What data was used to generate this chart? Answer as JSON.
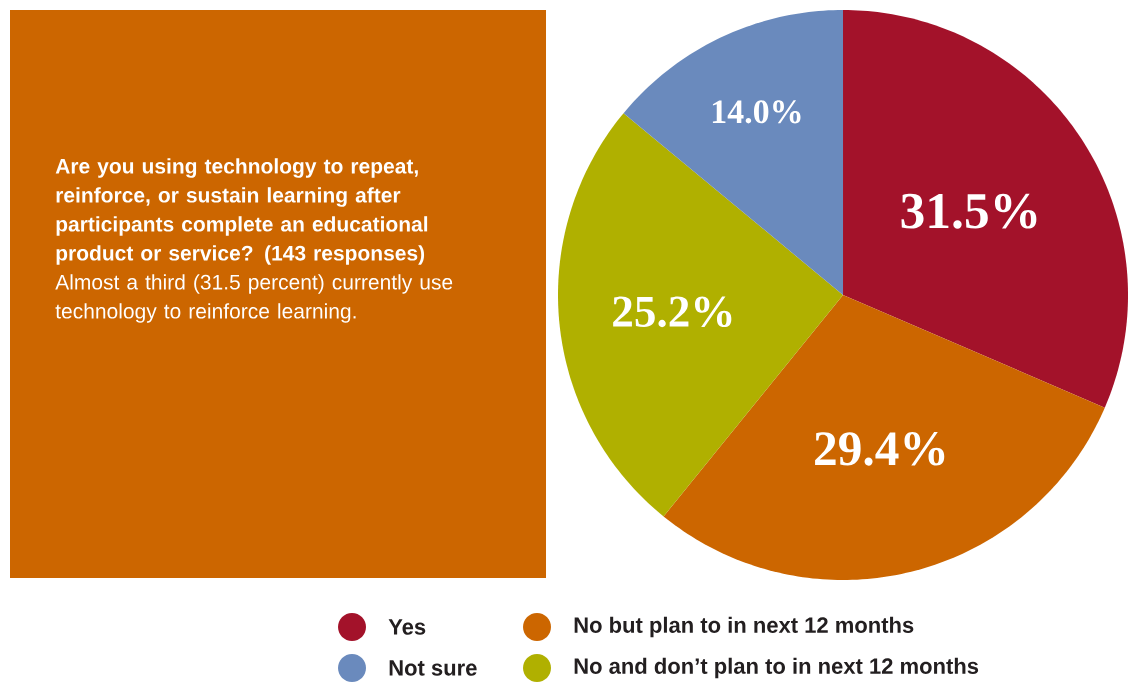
{
  "chart_data": {
    "type": "pie",
    "title": "Are you using technology to repeat, reinforce, or sustain learning after participants complete an educational product or service? (143 responses)",
    "subtitle": "Almost a third (31.5 percent) currently use technology to reinforce learning.",
    "categories": [
      "Yes",
      "No but plan to in next 12 months",
      "No and don’t plan to in next 12 months",
      "Not sure"
    ],
    "values": [
      31.5,
      29.4,
      25.2,
      14.0
    ],
    "colors": [
      "#a3122a",
      "#cc6600",
      "#b0b000",
      "#6a8abd"
    ],
    "value_labels": [
      "31.5%",
      "29.4%",
      "25.2%",
      "14.0%"
    ],
    "legend": "bottom"
  }
}
